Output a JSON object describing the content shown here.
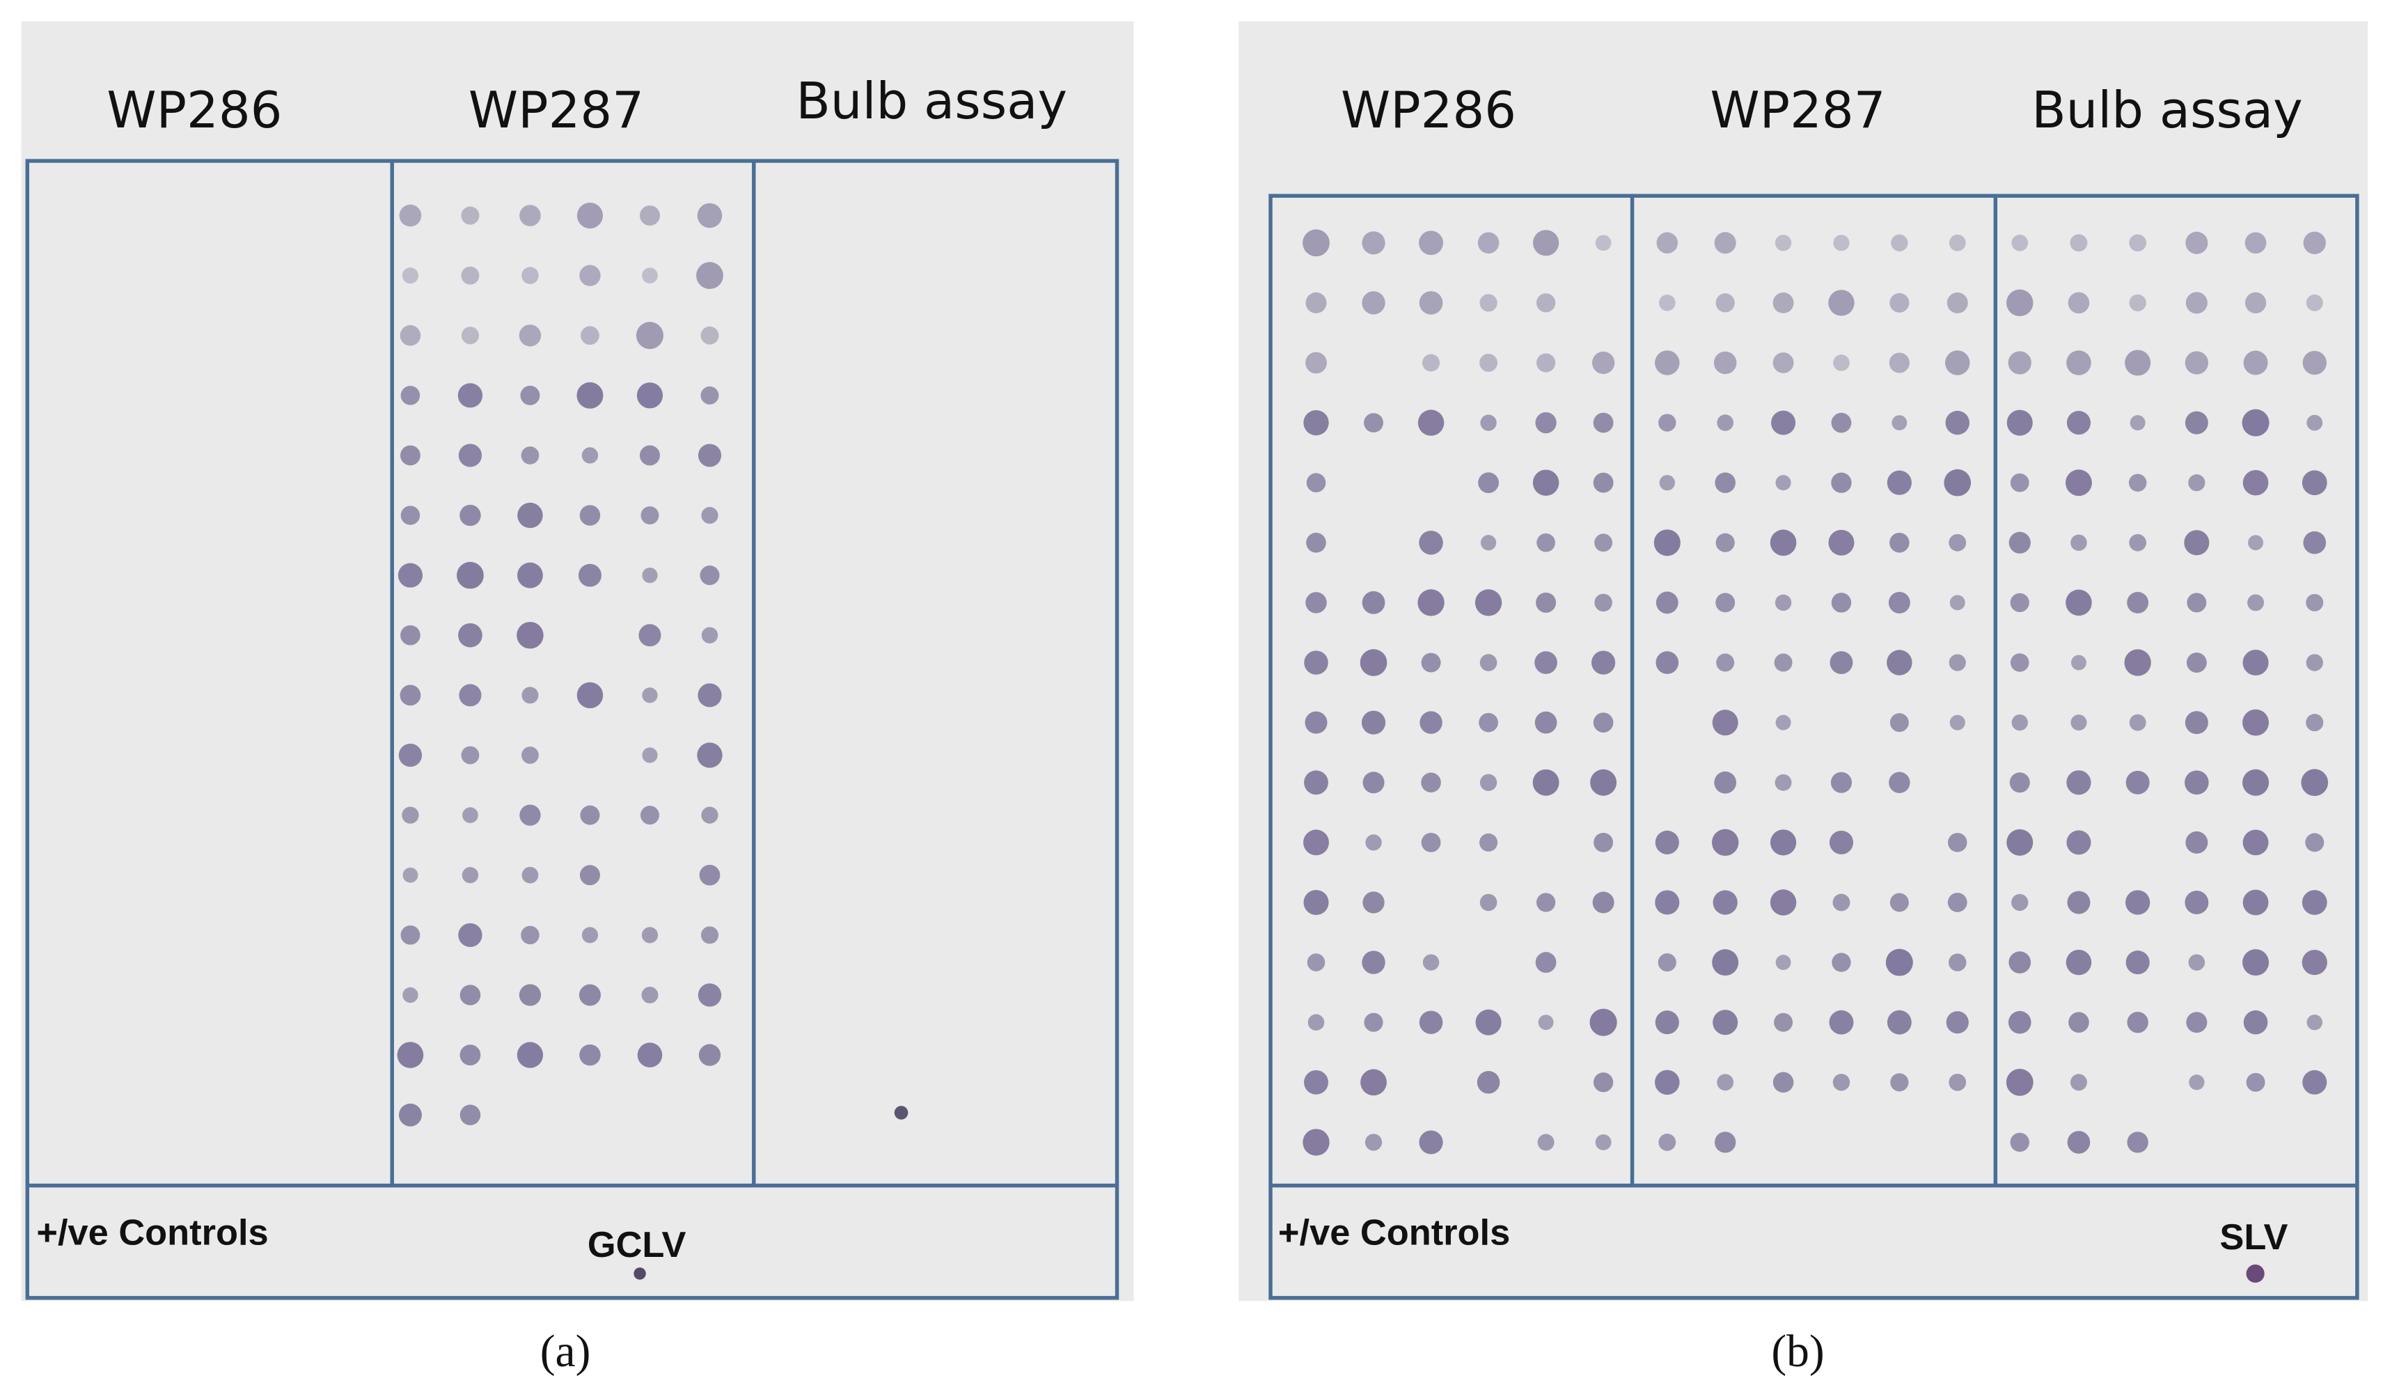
{
  "panels": [
    {
      "headers": [
        "WP286",
        "WP287",
        "Bulb assay"
      ],
      "controls_label": "+/ve Controls",
      "virus_label": "GCLV",
      "caption": "(a)"
    },
    {
      "headers": [
        "WP286",
        "WP287",
        "Bulb assay"
      ],
      "controls_label": "+/ve Controls",
      "virus_label": "SLV",
      "caption": "(b)"
    }
  ]
}
